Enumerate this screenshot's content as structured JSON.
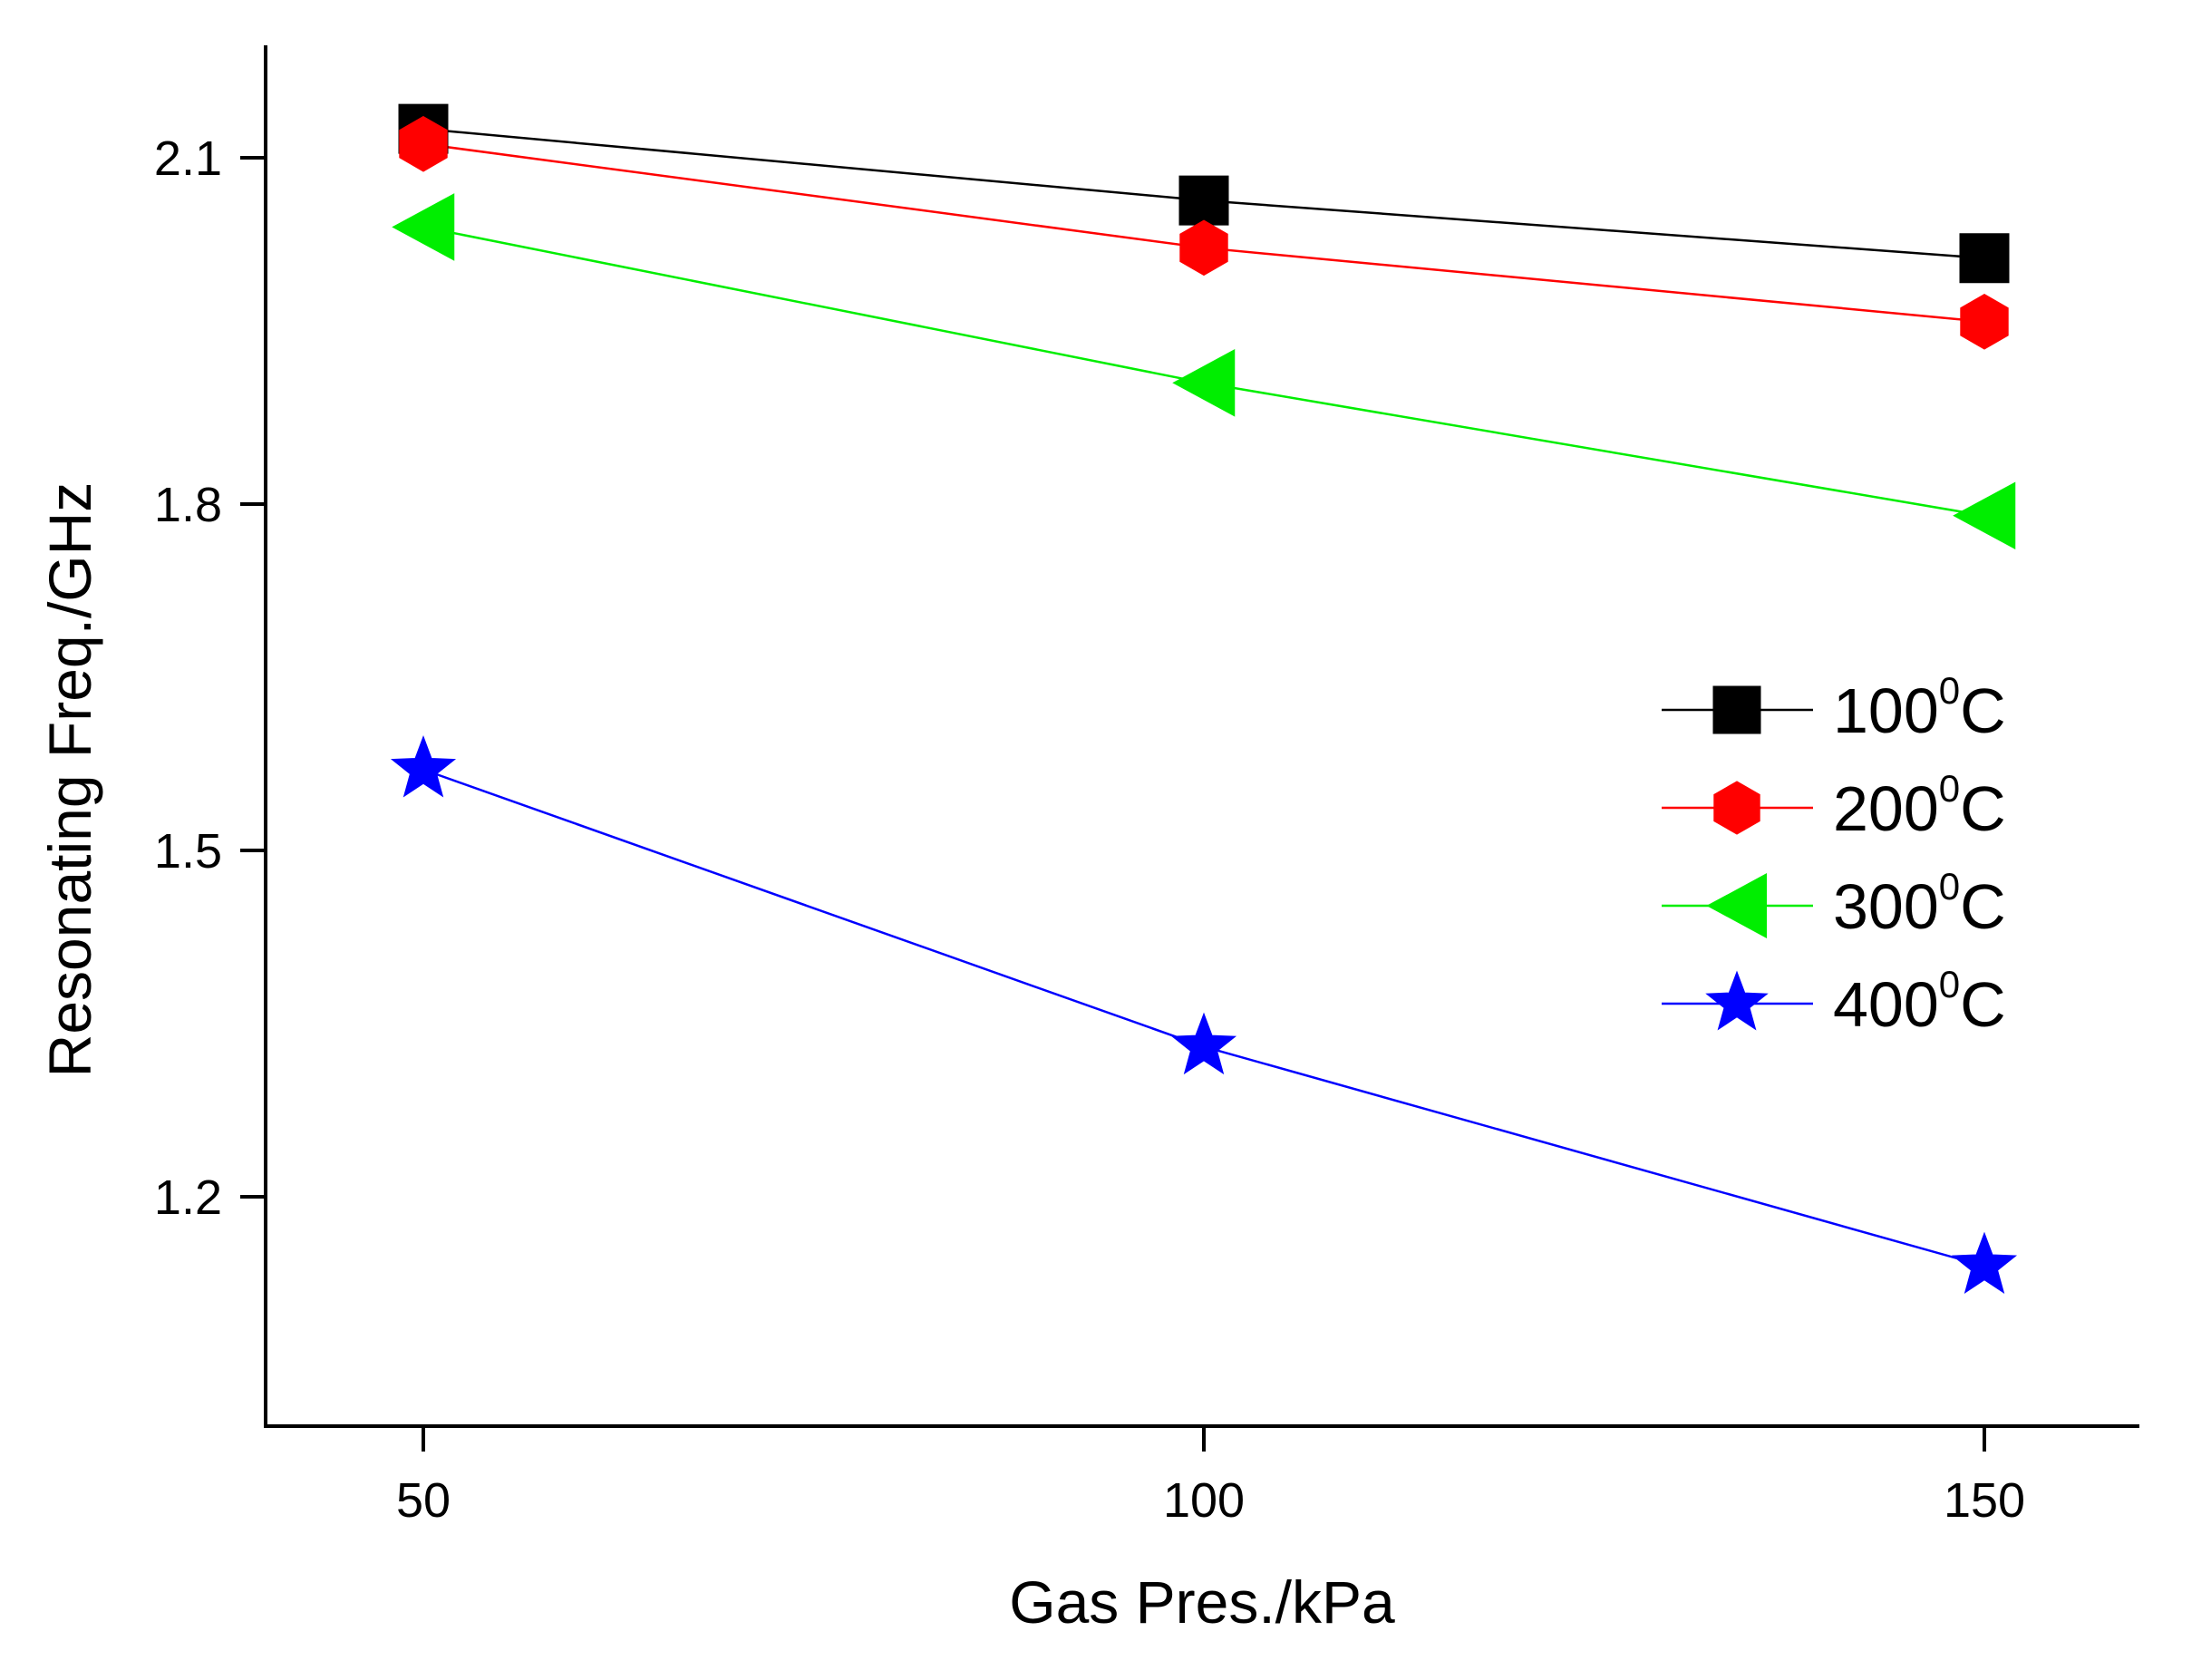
{
  "chart_data": {
    "type": "line",
    "title": "",
    "xlabel": "Gas Pres./kPa",
    "ylabel": "Resonating Freq./GHz",
    "x": [
      50,
      100,
      150
    ],
    "xlim": [
      40,
      160
    ],
    "ylim": [
      1.0,
      2.2
    ],
    "xticks": [
      50,
      100,
      150
    ],
    "xtick_labels": [
      "50",
      "100",
      "150"
    ],
    "yticks": [
      1.2,
      1.5,
      1.8,
      2.1
    ],
    "ytick_labels": [
      "1.2",
      "1.5",
      "1.8",
      "2.1"
    ],
    "grid": false,
    "legend_position": "right",
    "series": [
      {
        "name": "100⁰C",
        "label_main": "100",
        "label_sup": "0",
        "label_unit": "C",
        "marker": "square",
        "color": "#000000",
        "values": [
          2.125,
          2.063,
          2.013
        ]
      },
      {
        "name": "200⁰C",
        "label_main": "200",
        "label_sup": "0",
        "label_unit": "C",
        "marker": "hexagon",
        "color": "#ff0000",
        "values": [
          2.112,
          2.022,
          1.958
        ]
      },
      {
        "name": "300⁰C",
        "label_main": "300",
        "label_sup": "0",
        "label_unit": "C",
        "marker": "triangle-left",
        "color": "#00ee00",
        "values": [
          2.04,
          1.905,
          1.79
        ]
      },
      {
        "name": "400⁰C",
        "label_main": "400",
        "label_sup": "0",
        "label_unit": "C",
        "marker": "star",
        "color": "#0000ff",
        "values": [
          1.57,
          1.33,
          1.14
        ]
      }
    ]
  }
}
